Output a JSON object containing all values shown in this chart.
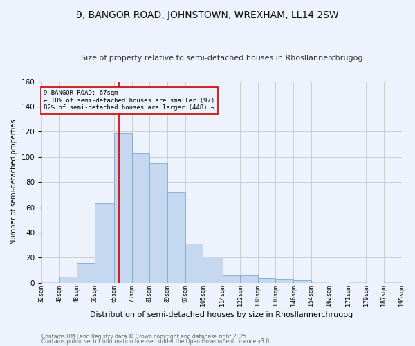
{
  "title": "9, BANGOR ROAD, JOHNSTOWN, WREXHAM, LL14 2SW",
  "subtitle": "Size of property relative to semi-detached houses in Rhosllannerchrugog",
  "xlabel": "Distribution of semi-detached houses by size in Rhosllannerchrugog",
  "ylabel": "Number of semi-detached properties",
  "footnote1": "Contains HM Land Registry data © Crown copyright and database right 2025.",
  "footnote2": "Contains public sector information licensed under the Open Government Licence v3.0.",
  "annotation_title": "9 BANGOR ROAD: 67sqm",
  "annotation_line1": "← 18% of semi-detached houses are smaller (97)",
  "annotation_line2": "82% of semi-detached houses are larger (448) →",
  "subject_value": 67,
  "bar_edges": [
    32,
    40,
    48,
    56,
    65,
    73,
    81,
    89,
    97,
    105,
    114,
    122,
    130,
    138,
    146,
    154,
    162,
    171,
    179,
    187,
    195
  ],
  "bar_heights": [
    1,
    5,
    16,
    63,
    119,
    103,
    95,
    72,
    31,
    21,
    6,
    6,
    4,
    3,
    2,
    1,
    0,
    1,
    0,
    1
  ],
  "tick_labels": [
    "32sqm",
    "40sqm",
    "48sqm",
    "56sqm",
    "65sqm",
    "73sqm",
    "81sqm",
    "89sqm",
    "97sqm",
    "105sqm",
    "114sqm",
    "122sqm",
    "130sqm",
    "138sqm",
    "146sqm",
    "154sqm",
    "162sqm",
    "171sqm",
    "179sqm",
    "187sqm",
    "195sqm"
  ],
  "bar_color": "#c5d8f0",
  "bar_edge_color": "#7aadd4",
  "vline_color": "#cc0000",
  "annotation_box_color": "#cc0000",
  "grid_color": "#c8c8c8",
  "background_color": "#eef2fc",
  "ylim": [
    0,
    160
  ],
  "title_fontsize": 10,
  "subtitle_fontsize": 8,
  "ylabel_fontsize": 7,
  "xlabel_fontsize": 8
}
